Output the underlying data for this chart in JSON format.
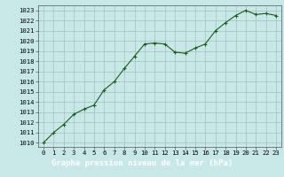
{
  "x": [
    0,
    1,
    2,
    3,
    4,
    5,
    6,
    7,
    8,
    9,
    10,
    11,
    12,
    13,
    14,
    15,
    16,
    17,
    18,
    19,
    20,
    21,
    22,
    23
  ],
  "y": [
    1010.0,
    1011.0,
    1011.8,
    1012.8,
    1013.3,
    1013.7,
    1015.2,
    1016.0,
    1017.3,
    1018.5,
    1019.7,
    1019.8,
    1019.7,
    1018.9,
    1018.8,
    1019.3,
    1019.7,
    1021.0,
    1021.8,
    1022.5,
    1023.0,
    1022.6,
    1022.7,
    1022.5
  ],
  "line_color": "#1a5c1a",
  "marker": "+",
  "marker_size": 3,
  "linewidth": 0.8,
  "background_color": "#c8e8e8",
  "plot_bg_color": "#c8e8e8",
  "grid_color": "#a0c0c0",
  "xlabel": "Graphe pression niveau de la mer (hPa)",
  "xlabel_fontsize": 6.5,
  "ylabel_ticks": [
    1010,
    1011,
    1012,
    1013,
    1014,
    1015,
    1016,
    1017,
    1018,
    1019,
    1020,
    1021,
    1022,
    1023
  ],
  "ylim": [
    1009.6,
    1023.5
  ],
  "xlim": [
    -0.5,
    23.5
  ],
  "tick_fontsize": 5.2,
  "xtick_labels": [
    "0",
    "1",
    "2",
    "3",
    "4",
    "5",
    "6",
    "7",
    "8",
    "9",
    "10",
    "11",
    "12",
    "13",
    "14",
    "15",
    "16",
    "17",
    "18",
    "19",
    "20",
    "21",
    "22",
    "23"
  ],
  "bottom_bar_color": "#2a6e2a",
  "label_bg_color": "#2a6e2a",
  "label_text_color": "#ffffff"
}
